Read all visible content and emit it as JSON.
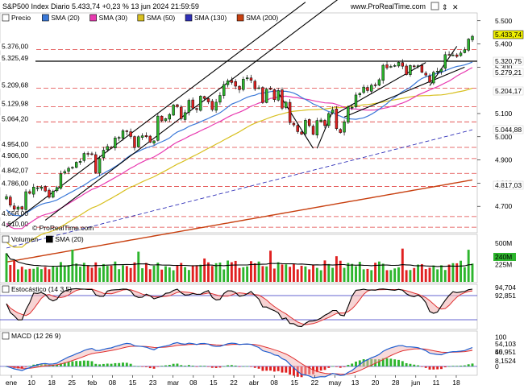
{
  "header": {
    "title": "S&P500 Index Diario 5.433,74 +0,23 % 13 jun 2024 21:59:59",
    "site": "www.ProRealTime.com",
    "icons": [
      "square-icon",
      "arrows-icon",
      "close-icon"
    ]
  },
  "colors": {
    "up": "#2db52d",
    "down": "#e02020",
    "sma20": "#3a78d8",
    "sma30": "#e83ab0",
    "sma50": "#d8c020",
    "sma130": "#3030b8",
    "sma200": "#c84010",
    "hline": "#e04040",
    "trend": "#000000",
    "stoch_k": "#000000",
    "stoch_d": "#e03030",
    "macd": "#2060d0",
    "signal": "#e03030"
  },
  "price_panel": {
    "legend": [
      {
        "label": "Precio",
        "color": "#ffffff"
      },
      {
        "label": "SMA (20)",
        "color": "#3a78d8"
      },
      {
        "label": "SMA (30)",
        "color": "#e83ab0"
      },
      {
        "label": "SMA (50)",
        "color": "#d8c020"
      },
      {
        "label": "SMA (130)",
        "color": "#3030b8"
      },
      {
        "label": "SMA (200)",
        "color": "#c84010"
      }
    ],
    "right_ticks": [
      "5.500",
      "5.400",
      "5.300",
      "5.100",
      "5.000",
      "4.900",
      "4.800",
      "4.700"
    ],
    "left_levels": [
      "5.376,00",
      "5.325,49",
      "5.209,68",
      "5.129,98",
      "5.064,20",
      "4.954,00",
      "4.906,00",
      "4.842,07",
      "4.786,00",
      "4.656,00",
      "4.610,00"
    ],
    "right_badges": [
      {
        "text": "5.433,74",
        "bg": "#f0f000",
        "fg": "#000000"
      },
      {
        "text": "5.320,75",
        "bg": "#ffffff",
        "fg": "#3a78d8"
      },
      {
        "text": "5.279,21",
        "bg": "#ffffff",
        "fg": "#e83ab0"
      },
      {
        "text": "5.204,17",
        "bg": "#ffffff",
        "fg": "#c0a010"
      },
      {
        "text": "5.044,88",
        "bg": "#ffffff",
        "fg": "#3030b8"
      },
      {
        "text": "4.817,03",
        "bg": "#ffffff",
        "fg": "#c84010"
      }
    ],
    "watermark": "© ProRealTime.com"
  },
  "volume_panel": {
    "legend": [
      {
        "label": "Volumen",
        "color": "#ffffff"
      },
      {
        "label": "SMA (20)",
        "color": "#000000"
      }
    ],
    "ticks": [
      "500M",
      "225M"
    ],
    "badge": {
      "text": "240M",
      "bg": "#2db52d"
    }
  },
  "stoch_panel": {
    "legend": [
      {
        "label": "Estocástico (14 3 5)",
        "color": "#ffffff"
      }
    ],
    "badges": [
      {
        "text": "94,704",
        "fg": "#000000"
      },
      {
        "text": "92,851",
        "fg": "#e03030"
      }
    ]
  },
  "macd_panel": {
    "legend": [
      {
        "label": "MACD (12 26 9)",
        "color": "#ffffff"
      }
    ],
    "ticks": [
      "100",
      "50",
      "0"
    ],
    "badges": [
      {
        "text": "54,103",
        "fg": "#2060d0"
      },
      {
        "text": "45,951",
        "fg": "#e03030"
      },
      {
        "text": "8,1524",
        "fg": "#2db52d"
      }
    ]
  },
  "x_axis": {
    "labels": [
      "ene",
      "10",
      "18",
      "25",
      "feb",
      "08",
      "15",
      "23",
      "mar",
      "08",
      "15",
      "22",
      "abr",
      "08",
      "15",
      "22",
      "may",
      "13",
      "20",
      "28",
      "jun",
      "11",
      "18"
    ]
  },
  "chart_data": {
    "type": "candlestick",
    "title": "S&P500 Index Diario",
    "y_range": [
      4600,
      5520
    ],
    "last": 5433.74,
    "change_pct": 0.23,
    "date": "13 jun 2024 21:59:59",
    "close": [
      4742,
      4705,
      4688,
      4697,
      4688,
      4763,
      4756,
      4783,
      4780,
      4783,
      4766,
      4739,
      4765,
      4781,
      4840,
      4850,
      4864,
      4868,
      4890,
      4894,
      4928,
      4927,
      4925,
      4845,
      4906,
      4942,
      4958,
      4954,
      4995,
      4997,
      5026,
      5022,
      5001,
      4953,
      5000,
      5004,
      5000,
      4976,
      4982,
      5089,
      5069,
      5078,
      5096,
      5137,
      5131,
      5078,
      5104,
      5157,
      5123,
      5117,
      5175,
      5165,
      5150,
      5117,
      5149,
      5178,
      5225,
      5241,
      5234,
      5218,
      5203,
      5248,
      5254,
      5243,
      5206,
      5211,
      5147,
      5205,
      5204,
      5160,
      5199,
      5123,
      5149,
      5061,
      5051,
      5022,
      5011,
      5071,
      5048,
      5010,
      5070,
      5072,
      5048,
      5100,
      5116,
      5035,
      5018,
      5064,
      5128,
      5127,
      5180,
      5187,
      5214,
      5199,
      5222,
      5221,
      5246,
      5308,
      5297,
      5303,
      5307,
      5321,
      5304,
      5268,
      5307,
      5304,
      5306,
      5278,
      5266,
      5235,
      5278,
      5283,
      5291,
      5354,
      5353,
      5352,
      5346,
      5361,
      5375,
      5421,
      5433
    ]
  }
}
